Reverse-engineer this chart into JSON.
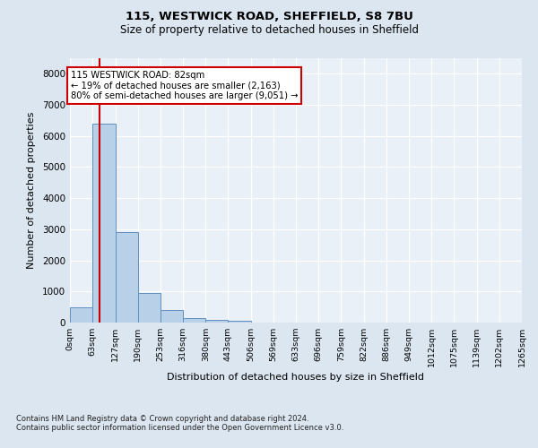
{
  "title1": "115, WESTWICK ROAD, SHEFFIELD, S8 7BU",
  "title2": "Size of property relative to detached houses in Sheffield",
  "xlabel": "Distribution of detached houses by size in Sheffield",
  "ylabel": "Number of detached properties",
  "footer1": "Contains HM Land Registry data © Crown copyright and database right 2024.",
  "footer2": "Contains public sector information licensed under the Open Government Licence v3.0.",
  "bin_labels": [
    "0sqm",
    "63sqm",
    "127sqm",
    "190sqm",
    "253sqm",
    "316sqm",
    "380sqm",
    "443sqm",
    "506sqm",
    "569sqm",
    "633sqm",
    "696sqm",
    "759sqm",
    "822sqm",
    "886sqm",
    "949sqm",
    "1012sqm",
    "1075sqm",
    "1139sqm",
    "1202sqm",
    "1265sqm"
  ],
  "bar_values": [
    500,
    6400,
    2900,
    950,
    400,
    150,
    100,
    70,
    0,
    0,
    0,
    0,
    0,
    0,
    0,
    0,
    0,
    0,
    0,
    0
  ],
  "bin_edges": [
    0,
    63,
    127,
    190,
    253,
    316,
    380,
    443,
    506,
    569,
    633,
    696,
    759,
    822,
    886,
    949,
    1012,
    1075,
    1139,
    1202,
    1265
  ],
  "property_size": 82,
  "bar_color": "#b8d0e8",
  "bar_edge_color": "#6090c0",
  "vline_color": "#cc0000",
  "annotation_box_color": "#cc0000",
  "annotation_text": "115 WESTWICK ROAD: 82sqm\n← 19% of detached houses are smaller (2,163)\n80% of semi-detached houses are larger (9,051) →",
  "ylim": [
    0,
    8500
  ],
  "yticks": [
    0,
    1000,
    2000,
    3000,
    4000,
    5000,
    6000,
    7000,
    8000
  ],
  "bg_color": "#dce6f0",
  "plot_bg_color": "#eaf0f8",
  "grid_color": "#ffffff"
}
